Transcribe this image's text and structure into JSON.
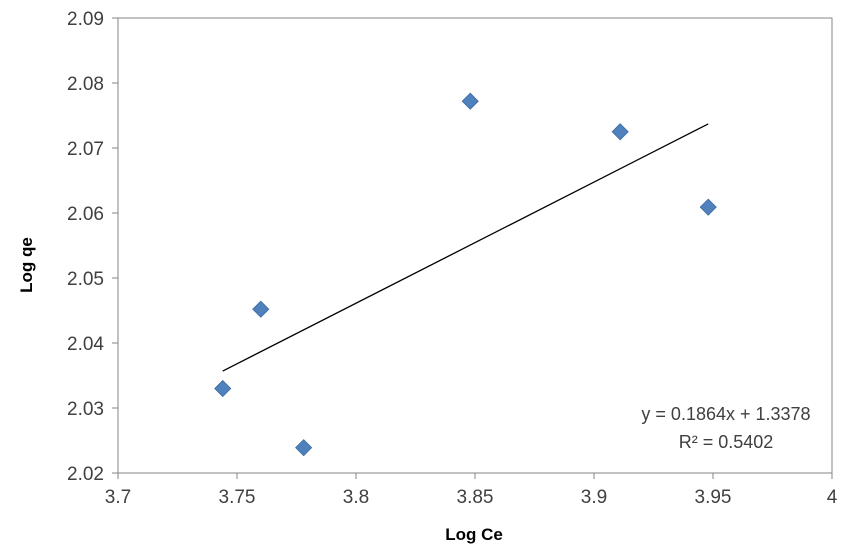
{
  "chart_data": {
    "type": "scatter",
    "title": "",
    "xlabel": "Log Ce",
    "ylabel": "Log qe",
    "xlim": [
      3.7,
      4
    ],
    "ylim": [
      2.02,
      2.09
    ],
    "x_ticks": [
      "3.7",
      "3.75",
      "3.8",
      "3.85",
      "3.9",
      "3.95",
      "4"
    ],
    "y_ticks": [
      "2.02",
      "2.03",
      "2.04",
      "2.05",
      "2.06",
      "2.07",
      "2.08",
      "2.09"
    ],
    "grid": false,
    "legend": "none",
    "marker": "diamond",
    "marker_color": "#4f81bd",
    "series": [
      {
        "x": [
          3.744,
          3.76,
          3.778,
          3.848,
          3.911,
          3.948
        ],
        "y": [
          2.033,
          2.0452,
          2.0239,
          2.0772,
          2.0725,
          2.0609
        ]
      }
    ],
    "trendline": {
      "type": "linear",
      "slope": 0.1864,
      "intercept": 1.3378,
      "x_range": [
        3.744,
        3.948
      ],
      "color": "#000000"
    },
    "annotations": {
      "equation": "y = 0.1864x + 1.3378",
      "r_squared": "R² = 0.5402"
    }
  }
}
